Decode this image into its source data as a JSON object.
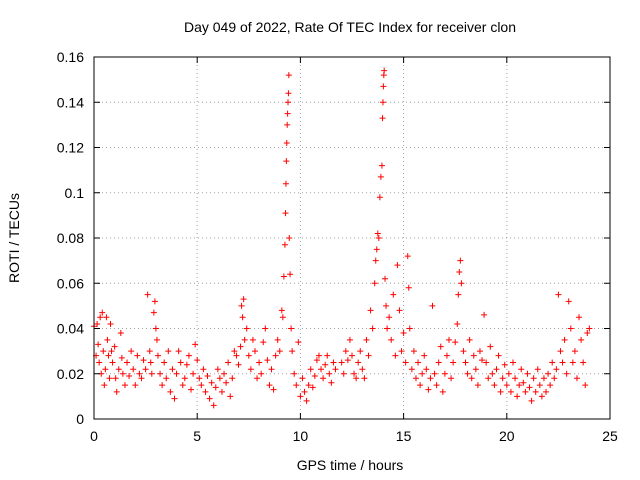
{
  "chart_data": {
    "type": "scatter",
    "title": "Day 049 of 2022, Rate Of TEC Index for receiver clon",
    "xlabel": "GPS time / hours",
    "ylabel": "ROTI / TECUs",
    "xlim": [
      0,
      25
    ],
    "ylim": [
      0,
      0.16
    ],
    "x_ticks": [
      0,
      5,
      10,
      15,
      20,
      25
    ],
    "x_tick_labels": [
      "0",
      "5",
      "10",
      "15",
      "20",
      "25"
    ],
    "y_ticks": [
      0,
      0.02,
      0.04,
      0.06,
      0.08,
      0.1,
      0.12,
      0.14,
      0.16
    ],
    "y_tick_labels": [
      "0",
      "0.02",
      "0.04",
      "0.06",
      "0.08",
      "0.1",
      "0.12",
      "0.14",
      "0.16"
    ],
    "grid": true,
    "marker": "plus",
    "color": "#ff0000",
    "series": [
      {
        "points": [
          [
            0.0,
            0.041
          ],
          [
            0.1,
            0.028
          ],
          [
            0.15,
            0.042
          ],
          [
            0.2,
            0.033
          ],
          [
            0.25,
            0.025
          ],
          [
            0.3,
            0.045
          ],
          [
            0.35,
            0.02
          ],
          [
            0.4,
            0.047
          ],
          [
            0.45,
            0.03
          ],
          [
            0.5,
            0.015
          ],
          [
            0.55,
            0.022
          ],
          [
            0.6,
            0.045
          ],
          [
            0.65,
            0.035
          ],
          [
            0.7,
            0.028
          ],
          [
            0.75,
            0.018
          ],
          [
            0.8,
            0.042
          ],
          [
            0.85,
            0.03
          ],
          [
            0.9,
            0.025
          ],
          [
            1.0,
            0.032
          ],
          [
            1.05,
            0.018
          ],
          [
            1.1,
            0.012
          ],
          [
            1.2,
            0.022
          ],
          [
            1.3,
            0.038
          ],
          [
            1.35,
            0.027
          ],
          [
            1.4,
            0.02
          ],
          [
            1.5,
            0.015
          ],
          [
            1.6,
            0.025
          ],
          [
            1.7,
            0.019
          ],
          [
            1.8,
            0.03
          ],
          [
            1.9,
            0.022
          ],
          [
            2.0,
            0.015
          ],
          [
            2.1,
            0.028
          ],
          [
            2.2,
            0.02
          ],
          [
            2.3,
            0.018
          ],
          [
            2.4,
            0.026
          ],
          [
            2.5,
            0.022
          ],
          [
            2.6,
            0.055
          ],
          [
            2.7,
            0.03
          ],
          [
            2.75,
            0.025
          ],
          [
            2.8,
            0.02
          ],
          [
            2.9,
            0.047
          ],
          [
            2.95,
            0.052
          ],
          [
            3.0,
            0.04
          ],
          [
            3.05,
            0.035
          ],
          [
            3.1,
            0.028
          ],
          [
            3.2,
            0.02
          ],
          [
            3.3,
            0.015
          ],
          [
            3.4,
            0.025
          ],
          [
            3.5,
            0.018
          ],
          [
            3.6,
            0.03
          ],
          [
            3.7,
            0.012
          ],
          [
            3.8,
            0.022
          ],
          [
            3.9,
            0.009
          ],
          [
            4.0,
            0.02
          ],
          [
            4.1,
            0.03
          ],
          [
            4.2,
            0.025
          ],
          [
            4.3,
            0.015
          ],
          [
            4.4,
            0.018
          ],
          [
            4.5,
            0.024
          ],
          [
            4.6,
            0.028
          ],
          [
            4.7,
            0.013
          ],
          [
            4.8,
            0.02
          ],
          [
            4.9,
            0.033
          ],
          [
            5.0,
            0.026
          ],
          [
            5.1,
            0.018
          ],
          [
            5.2,
            0.015
          ],
          [
            5.3,
            0.022
          ],
          [
            5.4,
            0.012
          ],
          [
            5.5,
            0.019
          ],
          [
            5.6,
            0.009
          ],
          [
            5.7,
            0.016
          ],
          [
            5.8,
            0.006
          ],
          [
            5.9,
            0.014
          ],
          [
            6.0,
            0.022
          ],
          [
            6.1,
            0.018
          ],
          [
            6.2,
            0.012
          ],
          [
            6.3,
            0.02
          ],
          [
            6.4,
            0.016
          ],
          [
            6.5,
            0.025
          ],
          [
            6.6,
            0.01
          ],
          [
            6.7,
            0.018
          ],
          [
            6.8,
            0.03
          ],
          [
            6.9,
            0.028
          ],
          [
            7.0,
            0.024
          ],
          [
            7.1,
            0.032
          ],
          [
            7.15,
            0.05
          ],
          [
            7.2,
            0.045
          ],
          [
            7.25,
            0.053
          ],
          [
            7.3,
            0.035
          ],
          [
            7.4,
            0.04
          ],
          [
            7.5,
            0.028
          ],
          [
            7.6,
            0.022
          ],
          [
            7.7,
            0.035
          ],
          [
            7.8,
            0.03
          ],
          [
            7.9,
            0.018
          ],
          [
            8.0,
            0.025
          ],
          [
            8.1,
            0.02
          ],
          [
            8.2,
            0.034
          ],
          [
            8.3,
            0.04
          ],
          [
            8.4,
            0.026
          ],
          [
            8.5,
            0.015
          ],
          [
            8.6,
            0.022
          ],
          [
            8.7,
            0.013
          ],
          [
            8.8,
            0.028
          ],
          [
            8.9,
            0.035
          ],
          [
            9.0,
            0.03
          ],
          [
            9.1,
            0.048
          ],
          [
            9.15,
            0.045
          ],
          [
            9.2,
            0.063
          ],
          [
            9.25,
            0.077
          ],
          [
            9.28,
            0.091
          ],
          [
            9.3,
            0.104
          ],
          [
            9.32,
            0.114
          ],
          [
            9.34,
            0.122
          ],
          [
            9.36,
            0.13
          ],
          [
            9.38,
            0.135
          ],
          [
            9.4,
            0.14
          ],
          [
            9.42,
            0.144
          ],
          [
            9.44,
            0.152
          ],
          [
            9.46,
            0.08
          ],
          [
            9.5,
            0.064
          ],
          [
            9.55,
            0.04
          ],
          [
            9.6,
            0.03
          ],
          [
            9.7,
            0.02
          ],
          [
            9.8,
            0.015
          ],
          [
            9.9,
            0.034
          ],
          [
            10.0,
            0.01
          ],
          [
            10.1,
            0.018
          ],
          [
            10.2,
            0.012
          ],
          [
            10.3,
            0.008
          ],
          [
            10.4,
            0.015
          ],
          [
            10.5,
            0.022
          ],
          [
            10.6,
            0.014
          ],
          [
            10.7,
            0.019
          ],
          [
            10.8,
            0.026
          ],
          [
            10.9,
            0.028
          ],
          [
            11.0,
            0.022
          ],
          [
            11.1,
            0.018
          ],
          [
            11.2,
            0.024
          ],
          [
            11.3,
            0.028
          ],
          [
            11.4,
            0.02
          ],
          [
            11.5,
            0.016
          ],
          [
            11.6,
            0.025
          ],
          [
            11.7,
            0.022
          ],
          [
            12.0,
            0.025
          ],
          [
            12.1,
            0.02
          ],
          [
            12.2,
            0.03
          ],
          [
            12.3,
            0.026
          ],
          [
            12.4,
            0.035
          ],
          [
            12.5,
            0.028
          ],
          [
            12.6,
            0.02
          ],
          [
            12.7,
            0.018
          ],
          [
            12.8,
            0.025
          ],
          [
            12.9,
            0.03
          ],
          [
            13.0,
            0.022
          ],
          [
            13.1,
            0.018
          ],
          [
            13.2,
            0.035
          ],
          [
            13.3,
            0.028
          ],
          [
            13.4,
            0.048
          ],
          [
            13.5,
            0.04
          ],
          [
            13.6,
            0.06
          ],
          [
            13.65,
            0.07
          ],
          [
            13.7,
            0.075
          ],
          [
            13.75,
            0.082
          ],
          [
            13.8,
            0.08
          ],
          [
            13.85,
            0.098
          ],
          [
            13.9,
            0.107
          ],
          [
            13.95,
            0.112
          ],
          [
            13.98,
            0.133
          ],
          [
            14.0,
            0.14
          ],
          [
            14.02,
            0.147
          ],
          [
            14.04,
            0.152
          ],
          [
            14.06,
            0.154
          ],
          [
            14.1,
            0.062
          ],
          [
            14.15,
            0.05
          ],
          [
            14.2,
            0.04
          ],
          [
            14.3,
            0.045
          ],
          [
            14.4,
            0.035
          ],
          [
            14.5,
            0.055
          ],
          [
            14.6,
            0.028
          ],
          [
            14.7,
            0.068
          ],
          [
            14.8,
            0.048
          ],
          [
            14.9,
            0.03
          ],
          [
            15.0,
            0.038
          ],
          [
            15.1,
            0.025
          ],
          [
            15.2,
            0.072
          ],
          [
            15.25,
            0.058
          ],
          [
            15.3,
            0.04
          ],
          [
            15.4,
            0.022
          ],
          [
            15.5,
            0.03
          ],
          [
            15.6,
            0.018
          ],
          [
            15.7,
            0.025
          ],
          [
            15.8,
            0.015
          ],
          [
            15.9,
            0.02
          ],
          [
            16.0,
            0.028
          ],
          [
            16.1,
            0.022
          ],
          [
            16.2,
            0.013
          ],
          [
            16.3,
            0.018
          ],
          [
            16.4,
            0.05
          ],
          [
            16.5,
            0.02
          ],
          [
            16.6,
            0.015
          ],
          [
            16.7,
            0.025
          ],
          [
            16.8,
            0.032
          ],
          [
            16.9,
            0.012
          ],
          [
            17.0,
            0.02
          ],
          [
            17.1,
            0.028
          ],
          [
            17.2,
            0.035
          ],
          [
            17.3,
            0.018
          ],
          [
            17.4,
            0.025
          ],
          [
            17.5,
            0.034
          ],
          [
            17.6,
            0.042
          ],
          [
            17.65,
            0.055
          ],
          [
            17.7,
            0.065
          ],
          [
            17.75,
            0.07
          ],
          [
            17.8,
            0.06
          ],
          [
            17.9,
            0.03
          ],
          [
            18.0,
            0.025
          ],
          [
            18.1,
            0.02
          ],
          [
            18.2,
            0.035
          ],
          [
            18.3,
            0.018
          ],
          [
            18.4,
            0.028
          ],
          [
            18.5,
            0.022
          ],
          [
            18.6,
            0.015
          ],
          [
            18.7,
            0.03
          ],
          [
            18.8,
            0.026
          ],
          [
            18.9,
            0.046
          ],
          [
            19.0,
            0.025
          ],
          [
            19.1,
            0.018
          ],
          [
            19.2,
            0.032
          ],
          [
            19.3,
            0.02
          ],
          [
            19.4,
            0.015
          ],
          [
            19.5,
            0.022
          ],
          [
            19.6,
            0.028
          ],
          [
            19.7,
            0.012
          ],
          [
            19.8,
            0.018
          ],
          [
            19.9,
            0.024
          ],
          [
            20.0,
            0.015
          ],
          [
            20.1,
            0.02
          ],
          [
            20.2,
            0.012
          ],
          [
            20.3,
            0.025
          ],
          [
            20.4,
            0.018
          ],
          [
            20.5,
            0.01
          ],
          [
            20.6,
            0.015
          ],
          [
            20.7,
            0.022
          ],
          [
            20.8,
            0.016
          ],
          [
            20.9,
            0.012
          ],
          [
            21.0,
            0.02
          ],
          [
            21.1,
            0.014
          ],
          [
            21.2,
            0.008
          ],
          [
            21.3,
            0.018
          ],
          [
            21.4,
            0.012
          ],
          [
            21.5,
            0.022
          ],
          [
            21.6,
            0.015
          ],
          [
            21.7,
            0.01
          ],
          [
            21.8,
            0.018
          ],
          [
            21.9,
            0.012
          ],
          [
            22.0,
            0.02
          ],
          [
            22.1,
            0.015
          ],
          [
            22.2,
            0.025
          ],
          [
            22.3,
            0.018
          ],
          [
            22.4,
            0.022
          ],
          [
            22.5,
            0.055
          ],
          [
            22.6,
            0.03
          ],
          [
            22.7,
            0.025
          ],
          [
            22.8,
            0.035
          ],
          [
            22.9,
            0.02
          ],
          [
            23.0,
            0.052
          ],
          [
            23.1,
            0.04
          ],
          [
            23.2,
            0.025
          ],
          [
            23.3,
            0.03
          ],
          [
            23.4,
            0.018
          ],
          [
            23.5,
            0.045
          ],
          [
            23.6,
            0.035
          ],
          [
            23.7,
            0.025
          ],
          [
            23.8,
            0.015
          ],
          [
            23.9,
            0.038
          ],
          [
            24.0,
            0.04
          ]
        ]
      }
    ]
  }
}
